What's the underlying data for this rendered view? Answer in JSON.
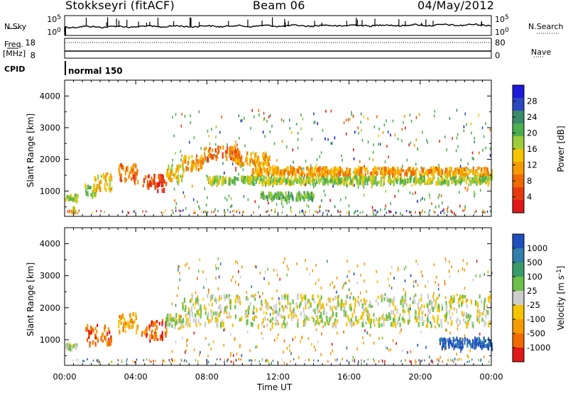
{
  "header": {
    "radar": "Stokkseyri (fitACF)",
    "beam": "Beam 06",
    "date": "04/May/2012"
  },
  "panels": {
    "nsky_label": "N.Sky",
    "nsearch_label": "N.Search",
    "freq_label_line1": "Freq.",
    "freq_label_line2": "[MHz]",
    "nave_label": "Nave",
    "cpid_label": "CPID",
    "cpid_value": "normal 150",
    "noise_left_ticks": [
      "10^5",
      "10^0"
    ],
    "noise_right_ticks": [
      "10^5",
      "10^0"
    ],
    "freq_left_ticks": [
      "18",
      "8"
    ],
    "freq_right_ticks": [
      "80",
      "0"
    ]
  },
  "chart_data": [
    {
      "type": "heatmap",
      "name": "power",
      "ylabel": "Slant Range [km]",
      "ylim": [
        200,
        4500
      ],
      "yticks": [
        1000,
        2000,
        3000,
        4000
      ],
      "xlim_hours": [
        0,
        24
      ],
      "colorbar": {
        "label": "Power [dB]",
        "ticks": [
          "4",
          "8",
          "12",
          "16",
          "20",
          "24",
          "28"
        ],
        "colors": [
          "#1a1ad8",
          "#2a48bf",
          "#3a8a6a",
          "#4caf50",
          "#9ccc3a",
          "#f5c400",
          "#f59a00",
          "#ef6a00",
          "#e83a10",
          "#e01818"
        ]
      },
      "bands": [
        {
          "t": [
            0.0,
            0.7
          ],
          "r": [
            780,
            920
          ],
          "level": 4
        },
        {
          "t": [
            0.3,
            0.6
          ],
          "r": [
            400,
            560
          ],
          "level": 5
        },
        {
          "t": [
            1.1,
            1.8
          ],
          "r": [
            900,
            1250
          ],
          "level": 4
        },
        {
          "t": [
            1.6,
            2.6
          ],
          "r": [
            1100,
            1600
          ],
          "level": 5
        },
        {
          "t": [
            3.0,
            4.1
          ],
          "r": [
            1300,
            1900
          ],
          "level": 7
        },
        {
          "t": [
            4.3,
            5.7
          ],
          "r": [
            1050,
            1550
          ],
          "level": 8
        },
        {
          "t": [
            5.6,
            6.7
          ],
          "r": [
            1400,
            1850
          ],
          "level": 5
        },
        {
          "t": [
            6.6,
            7.8
          ],
          "r": [
            1700,
            2150
          ],
          "level": 6
        },
        {
          "t": [
            7.8,
            9.8
          ],
          "r": [
            2050,
            2450
          ],
          "level": 7
        },
        {
          "t": [
            9.5,
            11.5
          ],
          "r": [
            1850,
            2250
          ],
          "level": 6
        },
        {
          "t": [
            10.5,
            18.0
          ],
          "r": [
            1550,
            1800
          ],
          "level": 6
        },
        {
          "t": [
            18.0,
            24.0
          ],
          "r": [
            1550,
            1780
          ],
          "level": 6
        },
        {
          "t": [
            8.0,
            24.0
          ],
          "r": [
            1300,
            1500
          ],
          "level": 4
        },
        {
          "t": [
            11.0,
            14.0
          ],
          "r": [
            800,
            1000
          ],
          "level": 3
        }
      ],
      "scatter_level": 3
    },
    {
      "type": "heatmap",
      "name": "velocity",
      "ylabel": "Slant Range [km]",
      "ylim": [
        200,
        4500
      ],
      "yticks": [
        1000,
        2000,
        3000,
        4000
      ],
      "xlim_hours": [
        0,
        24
      ],
      "xticks": [
        "00:00",
        "04:00",
        "08:00",
        "12:00",
        "16:00",
        "20:00",
        "00:00"
      ],
      "xlabel": "Time UT",
      "colorbar": {
        "label": "Velocity [m s^-1]",
        "ticks": [
          "1000",
          "500",
          "100",
          "25",
          "-25",
          "-100",
          "-500",
          "-1000"
        ],
        "colors": [
          "#1f4fbf",
          "#2f7fa8",
          "#3a9a6a",
          "#6cc04a",
          "#cccccc",
          "#f5c400",
          "#f59a00",
          "#ef6a00",
          "#e01818"
        ]
      },
      "bands": [
        {
          "t": [
            0.0,
            0.7
          ],
          "r": [
            780,
            920
          ],
          "level": 4
        },
        {
          "t": [
            1.1,
            2.6
          ],
          "r": [
            900,
            1500
          ],
          "level": 7
        },
        {
          "t": [
            3.0,
            4.1
          ],
          "r": [
            1300,
            1900
          ],
          "level": 6
        },
        {
          "t": [
            4.3,
            5.7
          ],
          "r": [
            1050,
            1650
          ],
          "level": 7
        },
        {
          "t": [
            5.6,
            6.7
          ],
          "r": [
            1400,
            1850
          ],
          "level": 4
        },
        {
          "t": [
            6.6,
            24.0
          ],
          "r": [
            1500,
            2450
          ],
          "level": 4
        },
        {
          "t": [
            21.0,
            24.0
          ],
          "r": [
            800,
            1100
          ],
          "level": 0
        }
      ],
      "scatter_level": 6
    }
  ]
}
